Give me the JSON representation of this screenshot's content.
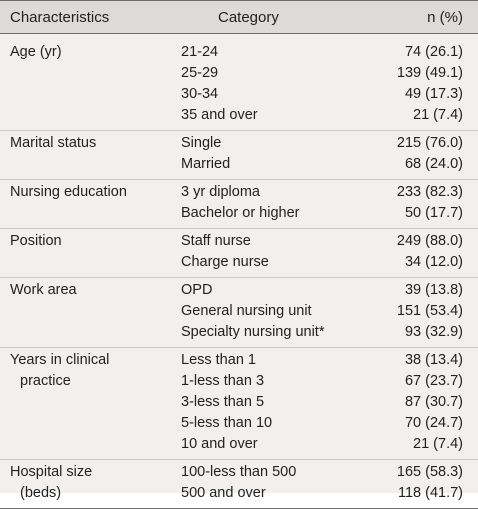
{
  "header": {
    "characteristics": "Characteristics",
    "category": "Category",
    "n": "n (%)"
  },
  "groups": [
    {
      "label": [
        "Age (yr)"
      ],
      "rows": [
        {
          "category": "21-24",
          "n": "74 (26.1)"
        },
        {
          "category": "25-29",
          "n": "139 (49.1)"
        },
        {
          "category": "30-34",
          "n": "49 (17.3)"
        },
        {
          "category": "35 and over",
          "n": "21 (7.4)"
        }
      ]
    },
    {
      "label": [
        "Marital status"
      ],
      "rows": [
        {
          "category": "Single",
          "n": "215 (76.0)"
        },
        {
          "category": "Married",
          "n": "68 (24.0)"
        }
      ]
    },
    {
      "label": [
        "Nursing education"
      ],
      "rows": [
        {
          "category": "3 yr diploma",
          "n": "233 (82.3)"
        },
        {
          "category": "Bachelor or higher",
          "n": "50 (17.7)"
        }
      ]
    },
    {
      "label": [
        "Position"
      ],
      "rows": [
        {
          "category": "Staff nurse",
          "n": "249 (88.0)"
        },
        {
          "category": "Charge nurse",
          "n": "34 (12.0)"
        }
      ]
    },
    {
      "label": [
        "Work area"
      ],
      "rows": [
        {
          "category": "OPD",
          "n": "39 (13.8)"
        },
        {
          "category": "General nursing unit",
          "n": "151 (53.4)"
        },
        {
          "category": "Specialty nursing unit*",
          "n": "93 (32.9)"
        }
      ]
    },
    {
      "label": [
        "Years in clinical",
        "practice"
      ],
      "rows": [
        {
          "category": "Less than 1",
          "n": "38 (13.4)"
        },
        {
          "category": "1-less than 3",
          "n": "67 (23.7)"
        },
        {
          "category": "3-less than 5",
          "n": "87 (30.7)"
        },
        {
          "category": "5-less than 10",
          "n": "70 (24.7)"
        },
        {
          "category": "10 and over",
          "n": "21 (7.4)"
        }
      ]
    },
    {
      "label": [
        "Hospital size",
        "(beds)"
      ],
      "rows": [
        {
          "category": "100-less than 500",
          "n": "165 (58.3)"
        },
        {
          "category": "500 and over",
          "n": "118 (41.7)"
        }
      ]
    }
  ]
}
